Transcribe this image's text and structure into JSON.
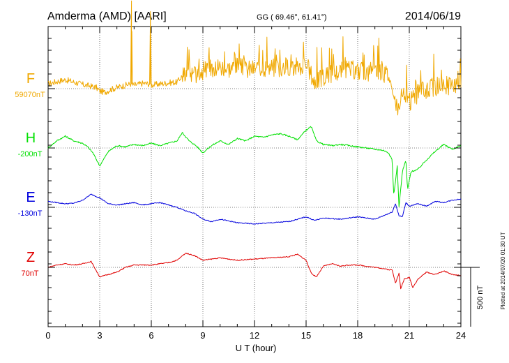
{
  "chart_data": {
    "type": "line",
    "title": "Amderma (AMD)  [AARI]",
    "subtitle": "GG ( 69.46°,  61.41°)",
    "date": "2014/06/19",
    "xlabel": "U T (hour)",
    "xlim": [
      0,
      24
    ],
    "x_ticks": [
      "0",
      "3",
      "6",
      "9",
      "12",
      "15",
      "18",
      "21",
      "24"
    ],
    "grid": true,
    "scale_bar_label": "500 nT",
    "plotted_note": "Plotted at 2014/07/20 01:30 UT",
    "series": [
      {
        "name": "F",
        "baseline_label": "59070nT",
        "color": "#f0a800",
        "ylim": [
          -1000,
          1000
        ],
        "x": [
          0,
          0.5,
          1,
          1.5,
          2,
          2.5,
          2.8,
          3,
          3.3,
          3.6,
          4,
          4.5,
          4.8,
          4.85,
          4.9,
          5.2,
          5.5,
          5.9,
          5.95,
          6.0,
          6.5,
          7,
          7.5,
          7.8,
          8,
          8.5,
          9,
          9.5,
          10,
          10.5,
          11,
          11.5,
          12,
          12.5,
          13,
          13.5,
          14,
          14.5,
          15,
          15.3,
          15.5,
          16,
          16.5,
          17,
          17.5,
          18,
          18.5,
          19,
          19.5,
          19.8,
          20,
          20.2,
          20.4,
          20.6,
          20.8,
          21,
          21.2,
          21.5,
          22,
          22.5,
          23,
          23.5,
          24
        ],
        "y": [
          40,
          60,
          75,
          55,
          35,
          20,
          10,
          -20,
          -30,
          -10,
          10,
          30,
          40,
          740,
          30,
          35,
          45,
          40,
          650,
          30,
          40,
          50,
          55,
          110,
          150,
          120,
          150,
          180,
          190,
          170,
          190,
          160,
          170,
          180,
          180,
          175,
          190,
          180,
          195,
          120,
          50,
          100,
          120,
          150,
          160,
          150,
          140,
          130,
          135,
          120,
          0,
          -100,
          -180,
          -80,
          -60,
          -120,
          -80,
          -40,
          -10,
          20,
          30,
          20,
          20
        ]
      },
      {
        "name": "H",
        "baseline_label": "-200nT",
        "color": "#00e000",
        "ylim": [
          -1000,
          1000
        ],
        "x": [
          0,
          0.5,
          1,
          1.5,
          2,
          2.3,
          2.6,
          3,
          3.5,
          4,
          4.5,
          5,
          5.5,
          6,
          6.5,
          7,
          7.5,
          7.8,
          8.2,
          8.6,
          9,
          9.5,
          10,
          10.5,
          11,
          11.5,
          12,
          12.5,
          13,
          13.5,
          14,
          14.5,
          15,
          15.3,
          15.6,
          16,
          16.5,
          17,
          17.5,
          18,
          18.5,
          19,
          19.5,
          19.8,
          20,
          20.1,
          20.3,
          20.4,
          20.6,
          20.8,
          20.9,
          21.1,
          21.5,
          22,
          22.5,
          23,
          23.5,
          24
        ],
        "y": [
          0,
          60,
          100,
          60,
          40,
          10,
          -40,
          -150,
          -30,
          20,
          10,
          30,
          20,
          40,
          20,
          40,
          60,
          130,
          60,
          20,
          -40,
          20,
          60,
          30,
          80,
          60,
          100,
          90,
          110,
          120,
          100,
          70,
          150,
          180,
          60,
          30,
          20,
          30,
          20,
          10,
          0,
          -10,
          -20,
          -40,
          -100,
          -400,
          -150,
          -500,
          -200,
          -100,
          -350,
          -200,
          -180,
          -100,
          -30,
          30,
          -10,
          20
        ]
      },
      {
        "name": "E",
        "baseline_label": "-130nT",
        "color": "#0000dd",
        "ylim": [
          -1000,
          1000
        ],
        "x": [
          0,
          0.5,
          1,
          1.5,
          2,
          2.5,
          3,
          3.5,
          4,
          4.5,
          5,
          5.5,
          6,
          6.5,
          7,
          7.5,
          8,
          8.5,
          9,
          9.5,
          10,
          11,
          12,
          13,
          14,
          15,
          15.5,
          16,
          17,
          18,
          19,
          19.5,
          20,
          20.2,
          20.4,
          20.6,
          20.8,
          21,
          21.5,
          22,
          22.5,
          23,
          23.5,
          24
        ],
        "y": [
          50,
          40,
          30,
          35,
          60,
          110,
          80,
          30,
          20,
          30,
          40,
          20,
          30,
          40,
          20,
          0,
          -30,
          -50,
          -100,
          -120,
          -100,
          -130,
          -140,
          -130,
          -120,
          -80,
          -110,
          -90,
          -100,
          -80,
          -100,
          -70,
          -40,
          30,
          -70,
          -80,
          40,
          10,
          30,
          10,
          50,
          40,
          60,
          70
        ]
      },
      {
        "name": "Z",
        "baseline_label": "70nT",
        "color": "#e00000",
        "ylim": [
          -1000,
          1000
        ],
        "x": [
          0,
          0.5,
          1,
          1.5,
          2,
          2.5,
          3,
          3.5,
          4,
          4.5,
          5,
          6,
          7,
          7.5,
          8,
          8.5,
          9,
          10,
          11,
          12,
          13,
          14,
          14.5,
          15,
          15.3,
          15.6,
          16,
          16.5,
          17,
          17.5,
          18,
          18.5,
          19,
          19.5,
          19.8,
          20,
          20.2,
          20.4,
          20.5,
          20.7,
          20.9,
          21,
          21.2,
          21.5,
          22,
          22.5,
          23,
          23.5,
          24
        ],
        "y": [
          0,
          20,
          30,
          20,
          30,
          50,
          -80,
          -60,
          -40,
          0,
          20,
          20,
          40,
          60,
          120,
          100,
          60,
          80,
          60,
          70,
          80,
          90,
          110,
          60,
          -50,
          -80,
          10,
          30,
          10,
          20,
          20,
          10,
          0,
          -10,
          -20,
          -20,
          -130,
          -50,
          -180,
          -100,
          -90,
          -80,
          -170,
          -100,
          -40,
          -60,
          -30,
          -60,
          -70
        ]
      }
    ]
  }
}
